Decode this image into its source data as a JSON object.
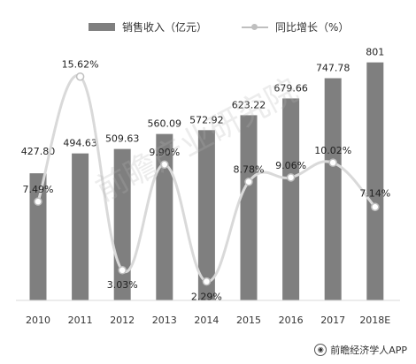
{
  "legend": {
    "bar_label": "销售收入（亿元）",
    "line_label": "同比增长（%）"
  },
  "credit": "前瞻经济学人APP",
  "watermark": "前瞻产业研究院",
  "colors": {
    "bar": "#7f7f7f",
    "line": "#d9d9d9",
    "marker": "#bfbfbf"
  },
  "chart_data": {
    "type": "bar",
    "categories": [
      "2010",
      "2011",
      "2012",
      "2013",
      "2014",
      "2015",
      "2016",
      "2017",
      "2018E"
    ],
    "series": [
      {
        "name": "销售收入（亿元）",
        "type": "bar",
        "values": [
          427.8,
          494.63,
          509.63,
          560.09,
          572.92,
          623.22,
          679.66,
          747.78,
          801
        ],
        "labels": [
          "427.80",
          "494.63",
          "509.63",
          "560.09",
          "572.92",
          "623.22",
          "679.66",
          "747.78",
          "801"
        ]
      },
      {
        "name": "同比增长（%）",
        "type": "line",
        "values": [
          7.49,
          15.62,
          3.03,
          9.9,
          2.29,
          8.78,
          9.06,
          10.02,
          7.14
        ],
        "labels": [
          "7.49%",
          "15.62%",
          "3.03%",
          "9.90%",
          "2.29%",
          "8.78%",
          "9.06%",
          "10.02%",
          "7.14%"
        ]
      }
    ],
    "grid": false,
    "legend_position": "top"
  }
}
